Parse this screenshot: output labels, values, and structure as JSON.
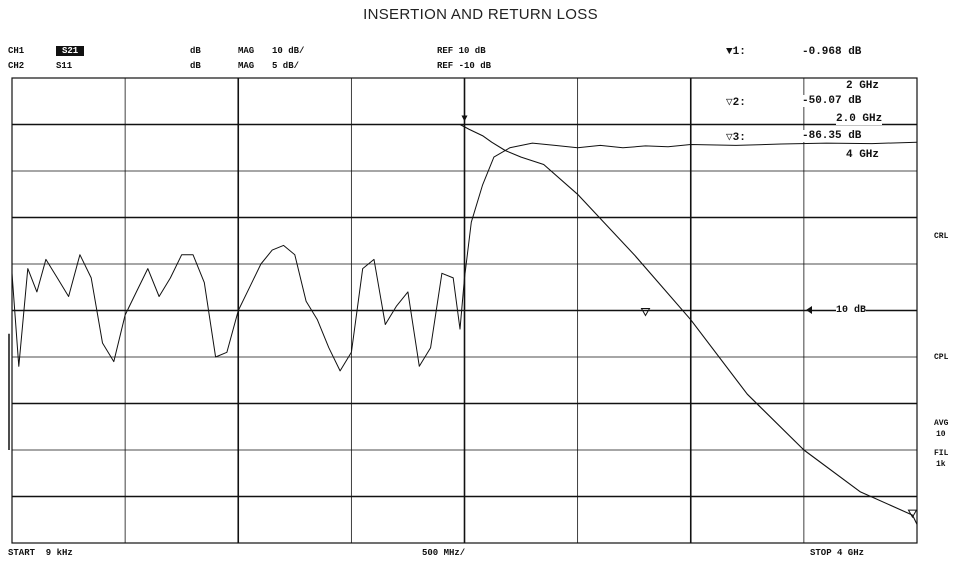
{
  "title": "INSERTION AND RETURN LOSS",
  "channels": [
    {
      "label": "CH1",
      "param": "S21",
      "unit": "dB",
      "format": "MAG",
      "scale": "10 dB/",
      "ref": "REF 10 dB"
    },
    {
      "label": "CH2",
      "param": "S11",
      "unit": "dB",
      "format": "MAG",
      "scale": "5 dB/",
      "ref": "REF -10 dB"
    }
  ],
  "markers": [
    {
      "id": "1",
      "symbol": "▼1:",
      "value": "-0.968 dB",
      "freq": "2 GHz"
    },
    {
      "id": "2",
      "symbol": "▽2:",
      "value": "-50.07 dB",
      "freq": "2.0 GHz"
    },
    {
      "id": "3",
      "symbol": "▽3:",
      "value": "-86.35 dB",
      "freq": "4 GHz"
    }
  ],
  "annotation": "10 dB",
  "side_labels": {
    "crl": "CRL",
    "cpl": "CPL",
    "avg": "AVG",
    "avg_val": "10",
    "fil": "FIL",
    "fil_val": "1k"
  },
  "footer": {
    "start": "START  9 kHz",
    "center": "500 MHz/",
    "stop": "STOP 4 GHz"
  },
  "chart_data": {
    "type": "line",
    "title": "INSERTION AND RETURN LOSS",
    "xlabel": "",
    "ylabel": "",
    "x_unit": "GHz",
    "xlim": [
      0,
      4
    ],
    "ylim": [
      -90,
      10
    ],
    "grid": true,
    "series": [
      {
        "name": "S21",
        "x": [
          0.0,
          0.5,
          1.0,
          1.5,
          1.98,
          2.02,
          2.08,
          2.12,
          2.18,
          2.25,
          2.35,
          2.5,
          2.75,
          3.0,
          3.25,
          3.5,
          3.75,
          3.98,
          4.0
        ],
        "values": [
          0,
          0,
          0,
          0,
          0,
          -1,
          -2.4,
          -3.8,
          -5.6,
          -7.0,
          -8.6,
          -15,
          -28,
          -42,
          -58,
          -70,
          -79,
          -84,
          -86
        ]
      },
      {
        "name": "S11",
        "x": [
          0.0,
          0.03,
          0.07,
          0.11,
          0.15,
          0.2,
          0.25,
          0.3,
          0.35,
          0.4,
          0.45,
          0.5,
          0.55,
          0.6,
          0.65,
          0.7,
          0.75,
          0.8,
          0.85,
          0.9,
          0.95,
          1.0,
          1.05,
          1.1,
          1.15,
          1.2,
          1.25,
          1.3,
          1.35,
          1.4,
          1.45,
          1.5,
          1.55,
          1.6,
          1.65,
          1.7,
          1.75,
          1.8,
          1.85,
          1.9,
          1.95,
          1.98,
          2.0,
          2.03,
          2.08,
          2.13,
          2.2,
          2.3,
          2.4,
          2.5,
          2.6,
          2.7,
          2.8,
          2.9,
          3.0,
          3.2,
          3.4,
          3.6,
          3.8,
          4.0
        ],
        "values": [
          -32,
          -52,
          -31,
          -36,
          -29,
          -33,
          -37,
          -28,
          -33,
          -47,
          -51,
          -41,
          -36,
          -31,
          -37,
          -33,
          -28,
          -28,
          -34,
          -50,
          -49,
          -40,
          -35,
          -30,
          -27,
          -26,
          -28,
          -38,
          -42,
          -48,
          -53,
          -49,
          -31,
          -29,
          -43,
          -39,
          -36,
          -52,
          -48,
          -32,
          -33,
          -44,
          -33,
          -21,
          -13,
          -7,
          -5,
          -4,
          -4.5,
          -5,
          -4.5,
          -5,
          -4.6,
          -4.8,
          -4.3,
          -4.5,
          -4.2,
          -4.0,
          -4.1,
          -3.8
        ]
      }
    ]
  }
}
